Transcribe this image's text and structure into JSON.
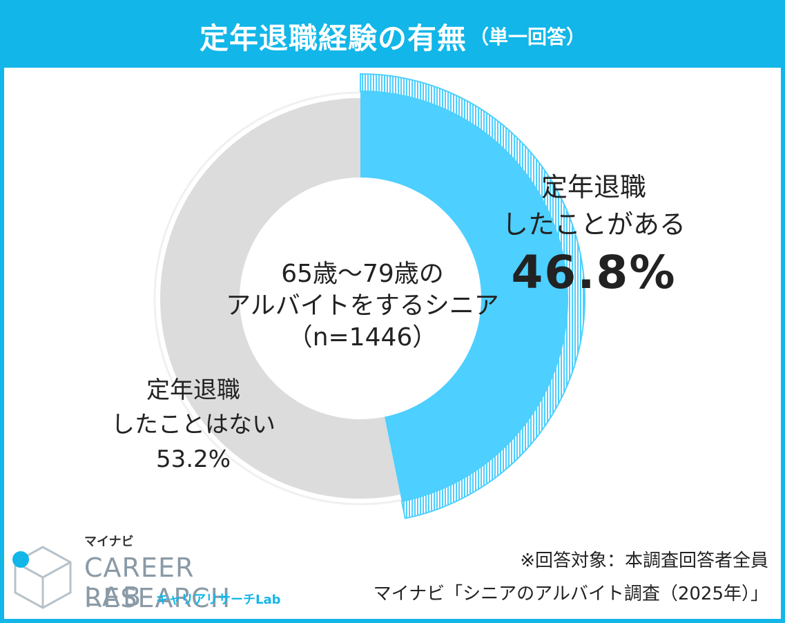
{
  "header": {
    "title": "定年退職経験の有無",
    "subtitle": "（単一回答）"
  },
  "center": {
    "line1": "65歳～79歳の",
    "line2": "アルバイトをするシニア",
    "line3": "（n=1446）"
  },
  "chart_data": {
    "type": "pie",
    "variant": "donut",
    "title": "定年退職経験の有無",
    "subtitle": "（単一回答）",
    "n": 1446,
    "slices": [
      {
        "label_line1": "定年退職",
        "label_line2": "したことがある",
        "value": 46.8,
        "value_label": "46.8%",
        "color": "#4dcfff",
        "highlighted": true
      },
      {
        "label_line1": "定年退職",
        "label_line2": "したことはない",
        "value": 53.2,
        "value_label": "53.2%",
        "color": "#dcdcdc",
        "highlighted": false
      }
    ],
    "start_angle": "12 o'clock",
    "direction": "clockwise"
  },
  "colors": {
    "accent": "#12b6e8",
    "slice_highlight": "#4dcfff",
    "slice_other": "#dcdcdc"
  },
  "logo": {
    "brand_small": "マイナビ",
    "name_line1": "CAREER RESEARCH",
    "name_line2": "LAB",
    "tagline": "キャリアリサーチLab"
  },
  "footnote": {
    "line1": "※回答対象：本調査回答者全員",
    "line2": "マイナビ「シニアのアルバイト調査（2025年）」"
  }
}
